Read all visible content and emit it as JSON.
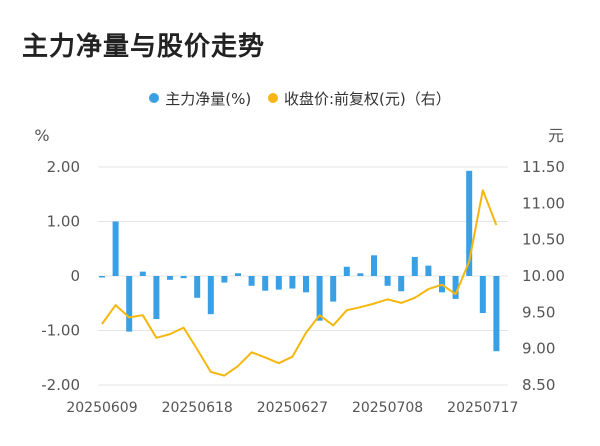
{
  "title": "主力净量与股价走势",
  "colors": {
    "bar": "#3aa0e6",
    "line": "#f5b60d",
    "grid": "#e4e4e4",
    "text": "#555555"
  },
  "chart_data": {
    "type": "bar+line",
    "legend": [
      {
        "name": "主力净量(%)",
        "color": "#3aa0e6"
      },
      {
        "name": "收盘价:前复权(元)（右）",
        "color": "#f5b60d"
      }
    ],
    "left_axis": {
      "unit": "%",
      "ticks": [
        "2.00",
        "1.00",
        "0",
        "-1.00",
        "-2.00"
      ],
      "ylim": [
        -2,
        2
      ]
    },
    "right_axis": {
      "unit": "元",
      "ticks": [
        "11.50",
        "11.00",
        "10.50",
        "10.00",
        "9.50",
        "9.00",
        "8.50"
      ],
      "ylim": [
        8.5,
        11.5
      ]
    },
    "x_tick_labels": [
      "20250609",
      "20250618",
      "20250627",
      "20250708",
      "20250717"
    ],
    "x_tick_index": [
      0,
      7,
      14,
      21,
      28
    ],
    "series": [
      {
        "name": "主力净量(%)",
        "type": "bar",
        "axis": "left",
        "values": [
          -0.02,
          1.0,
          -1.02,
          0.08,
          -0.79,
          -0.07,
          -0.04,
          -0.4,
          -0.7,
          -0.12,
          0.05,
          -0.18,
          -0.27,
          -0.25,
          -0.23,
          -0.3,
          -0.82,
          -0.47,
          0.17,
          0.05,
          0.38,
          -0.18,
          -0.28,
          0.35,
          0.19,
          -0.3,
          -0.42,
          1.93,
          -0.68,
          -1.38
        ]
      },
      {
        "name": "收盘价:前复权(元)（右）",
        "type": "line",
        "axis": "right",
        "values": [
          9.34,
          9.6,
          9.43,
          9.46,
          9.15,
          9.2,
          9.29,
          8.99,
          8.68,
          8.63,
          8.76,
          8.95,
          8.88,
          8.8,
          8.89,
          9.22,
          9.46,
          9.32,
          9.53,
          9.57,
          9.62,
          9.68,
          9.63,
          9.7,
          9.82,
          9.88,
          9.75,
          10.2,
          11.18,
          10.7
        ]
      }
    ]
  }
}
